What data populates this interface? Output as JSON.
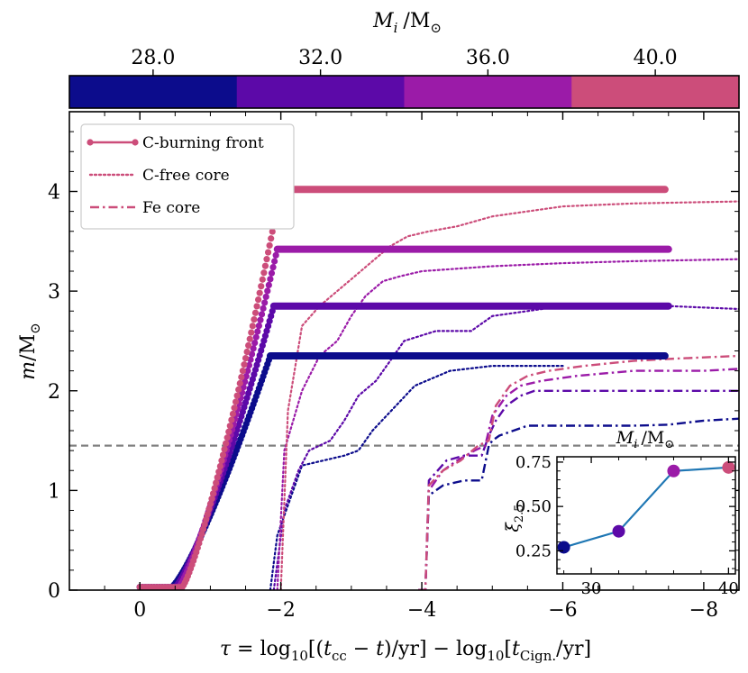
{
  "chart_data": {
    "type": "line",
    "colorbar": {
      "title_symbol": "M",
      "title_sub": "i",
      "title_unit": "/M",
      "title_unit_sub": "⊙",
      "ticks": [
        "28.0",
        "32.0",
        "36.0",
        "40.0"
      ],
      "bins": [
        {
          "mass": 28,
          "color": "#0c0c8c"
        },
        {
          "mass": 32,
          "color": "#5c09a8"
        },
        {
          "mass": 36,
          "color": "#9b1ba8"
        },
        {
          "mass": 40,
          "color": "#cc4d7a"
        }
      ]
    },
    "xlabel_tau": "τ",
    "xlabel": "= log10[(tcc − t)/yr] − log10[tCign./yr]",
    "xlabel_parts": {
      "eq": " = log",
      "sub10": "10",
      "p1": "[(",
      "t": "t",
      "cc": "cc",
      "p2": " − ",
      "t2": "t",
      "p3": ")/yr] − log",
      "sub10b": "10",
      "p4": "[",
      "t3": "t",
      "cign": "Cign.",
      "p5": "/yr]"
    },
    "ylabel_m": "m",
    "ylabel_unit": "/M",
    "ylabel_sun": "⊙",
    "xlim": [
      1.0,
      -8.5
    ],
    "ylim": [
      0,
      4.8
    ],
    "xticks": [
      0,
      -2,
      -4,
      -6,
      -8
    ],
    "xtick_labels": [
      "0",
      "−2",
      "−4",
      "−6",
      "−8"
    ],
    "yticks": [
      0,
      1,
      2,
      3,
      4
    ],
    "ytick_labels": [
      "0",
      "1",
      "2",
      "3",
      "4"
    ],
    "chandrasekhar_line": 1.45,
    "legend": [
      {
        "label": "C-burning front",
        "style": "solid-marker"
      },
      {
        "label": "C-free core",
        "style": "dotted"
      },
      {
        "label": "Fe core",
        "style": "dashdot"
      }
    ],
    "series": [
      {
        "mass": 28,
        "c_front_plateau": 2.35,
        "c_front_start": -1.85,
        "c_front_end": -7.45,
        "c_free": [
          [
            -1.85,
            0
          ],
          [
            -1.95,
            0.55
          ],
          [
            -2.15,
            0.95
          ],
          [
            -2.3,
            1.25
          ],
          [
            -2.6,
            1.3
          ],
          [
            -2.9,
            1.35
          ],
          [
            -3.1,
            1.4
          ],
          [
            -3.3,
            1.6
          ],
          [
            -3.5,
            1.75
          ],
          [
            -3.7,
            1.9
          ],
          [
            -3.9,
            2.05
          ],
          [
            -4.4,
            2.2
          ],
          [
            -5.0,
            2.25
          ],
          [
            -6.0,
            2.25
          ]
        ],
        "fe": [
          [
            -3.95,
            0
          ],
          [
            -4.05,
            0
          ],
          [
            -4.1,
            0.95
          ],
          [
            -4.3,
            1.05
          ],
          [
            -4.6,
            1.1
          ],
          [
            -4.85,
            1.1
          ],
          [
            -4.95,
            1.45
          ],
          [
            -5.0,
            1.5
          ],
          [
            -5.1,
            1.55
          ],
          [
            -5.3,
            1.6
          ],
          [
            -5.5,
            1.65
          ],
          [
            -6.0,
            1.65
          ],
          [
            -7.0,
            1.65
          ],
          [
            -7.5,
            1.66
          ],
          [
            -8.0,
            1.7
          ],
          [
            -8.5,
            1.72
          ]
        ]
      },
      {
        "mass": 32,
        "c_front_plateau": 2.85,
        "c_front_start": -1.9,
        "c_front_end": -7.5,
        "c_free": [
          [
            -1.9,
            0
          ],
          [
            -2.05,
            0.8
          ],
          [
            -2.25,
            1.2
          ],
          [
            -2.4,
            1.4
          ],
          [
            -2.7,
            1.5
          ],
          [
            -2.9,
            1.7
          ],
          [
            -3.1,
            1.95
          ],
          [
            -3.35,
            2.1
          ],
          [
            -3.55,
            2.3
          ],
          [
            -3.75,
            2.5
          ],
          [
            -4.2,
            2.6
          ],
          [
            -4.7,
            2.6
          ],
          [
            -5.0,
            2.75
          ],
          [
            -6.0,
            2.85
          ],
          [
            -7.5,
            2.85
          ],
          [
            -8.5,
            2.82
          ]
        ],
        "fe": [
          [
            -3.95,
            0
          ],
          [
            -4.05,
            0
          ],
          [
            -4.1,
            1.1
          ],
          [
            -4.35,
            1.3
          ],
          [
            -4.6,
            1.35
          ],
          [
            -4.85,
            1.35
          ],
          [
            -4.95,
            1.55
          ],
          [
            -5.05,
            1.7
          ],
          [
            -5.2,
            1.85
          ],
          [
            -5.4,
            1.95
          ],
          [
            -5.6,
            2.0
          ],
          [
            -7.0,
            2.0
          ],
          [
            -8.5,
            2.0
          ]
        ]
      },
      {
        "mass": 36,
        "c_front_plateau": 3.42,
        "c_front_start": -1.95,
        "c_front_end": -7.5,
        "c_free": [
          [
            -1.95,
            0
          ],
          [
            -2.05,
            1.4
          ],
          [
            -2.3,
            2.0
          ],
          [
            -2.55,
            2.35
          ],
          [
            -2.8,
            2.5
          ],
          [
            -3.0,
            2.75
          ],
          [
            -3.2,
            2.95
          ],
          [
            -3.45,
            3.1
          ],
          [
            -3.7,
            3.15
          ],
          [
            -4.0,
            3.2
          ],
          [
            -5.0,
            3.25
          ],
          [
            -6.0,
            3.28
          ],
          [
            -7.0,
            3.3
          ],
          [
            -8.5,
            3.32
          ]
        ],
        "fe": [
          [
            -3.95,
            0
          ],
          [
            -4.05,
            0
          ],
          [
            -4.1,
            1.0
          ],
          [
            -4.3,
            1.2
          ],
          [
            -4.5,
            1.3
          ],
          [
            -4.75,
            1.4
          ],
          [
            -4.9,
            1.45
          ],
          [
            -5.0,
            1.75
          ],
          [
            -5.2,
            1.95
          ],
          [
            -5.4,
            2.05
          ],
          [
            -5.7,
            2.1
          ],
          [
            -6.2,
            2.15
          ],
          [
            -7.0,
            2.2
          ],
          [
            -8.0,
            2.2
          ],
          [
            -8.5,
            2.22
          ]
        ]
      },
      {
        "mass": 40,
        "c_front_plateau": 4.02,
        "c_front_start": -2.0,
        "c_front_end": -7.45,
        "c_free": [
          [
            -2.0,
            0
          ],
          [
            -2.1,
            1.8
          ],
          [
            -2.3,
            2.65
          ],
          [
            -2.55,
            2.85
          ],
          [
            -2.8,
            3.0
          ],
          [
            -3.05,
            3.15
          ],
          [
            -3.3,
            3.3
          ],
          [
            -3.55,
            3.45
          ],
          [
            -3.8,
            3.55
          ],
          [
            -4.1,
            3.6
          ],
          [
            -4.5,
            3.65
          ],
          [
            -5.0,
            3.75
          ],
          [
            -5.5,
            3.8
          ],
          [
            -6.0,
            3.85
          ],
          [
            -7.0,
            3.88
          ],
          [
            -8.5,
            3.9
          ]
        ],
        "fe": [
          [
            -3.95,
            0
          ],
          [
            -4.05,
            0
          ],
          [
            -4.1,
            1.05
          ],
          [
            -4.3,
            1.2
          ],
          [
            -4.55,
            1.3
          ],
          [
            -4.8,
            1.45
          ],
          [
            -4.95,
            1.5
          ],
          [
            -5.05,
            1.85
          ],
          [
            -5.25,
            2.05
          ],
          [
            -5.5,
            2.15
          ],
          [
            -5.8,
            2.2
          ],
          [
            -6.3,
            2.25
          ],
          [
            -7.0,
            2.3
          ],
          [
            -7.5,
            2.32
          ],
          [
            -8.5,
            2.35
          ]
        ]
      }
    ],
    "inset": {
      "title_symbol": "M",
      "title_sub": "i",
      "title_unit": "/M",
      "title_unit_sub": "⊙",
      "ylabel": "ξ",
      "ylabel_sub": "2.5",
      "x": [
        28,
        32,
        36,
        40
      ],
      "y": [
        0.27,
        0.36,
        0.7,
        0.72
      ],
      "xlim": [
        27.5,
        40.5
      ],
      "ylim": [
        0.12,
        0.78
      ],
      "xticks": [
        30,
        40
      ],
      "xtick_labels": [
        "30",
        "40"
      ],
      "yticks": [
        0.25,
        0.5,
        0.75
      ],
      "ytick_labels": [
        "0.25",
        "0.50",
        "0.75"
      ],
      "line_color": "#1f77b4"
    }
  }
}
